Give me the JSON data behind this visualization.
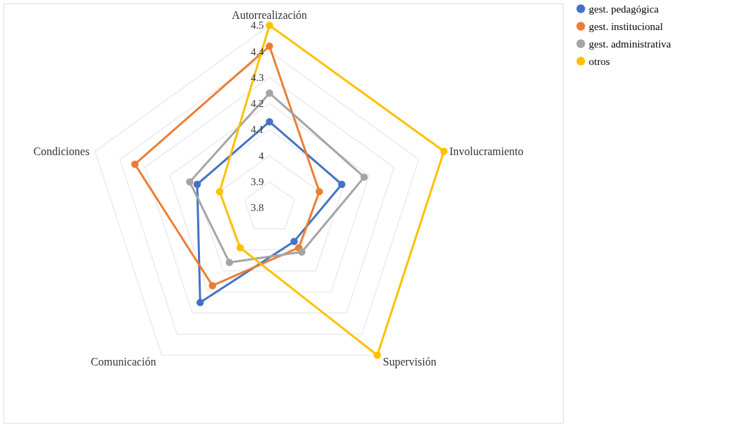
{
  "chart_data": {
    "type": "radar",
    "categories": [
      "Autorrealización",
      "Involucramiento",
      "Supervisión",
      "Comunicación",
      "Condiciones"
    ],
    "ylim": [
      3.8,
      4.5
    ],
    "yticks": [
      3.8,
      3.9,
      4,
      4.1,
      4.2,
      4.3,
      4.4,
      4.5
    ],
    "grid": true,
    "legend": "right",
    "marker": "circle",
    "series": [
      {
        "name": "gest. pedagógica",
        "color": "#4472c4",
        "values": [
          4.13,
          4.09,
          3.96,
          4.25,
          4.09
        ]
      },
      {
        "name": "gest. institucional",
        "color": "#ed7d31",
        "values": [
          4.42,
          4.0,
          3.99,
          4.17,
          4.34
        ]
      },
      {
        "name": "gest. administrativa",
        "color": "#a5a5a5",
        "values": [
          4.24,
          4.18,
          4.01,
          4.06,
          4.12
        ]
      },
      {
        "name": "otros",
        "color": "#ffc000",
        "values": [
          4.5,
          4.5,
          4.5,
          3.99,
          4.0
        ]
      }
    ]
  }
}
